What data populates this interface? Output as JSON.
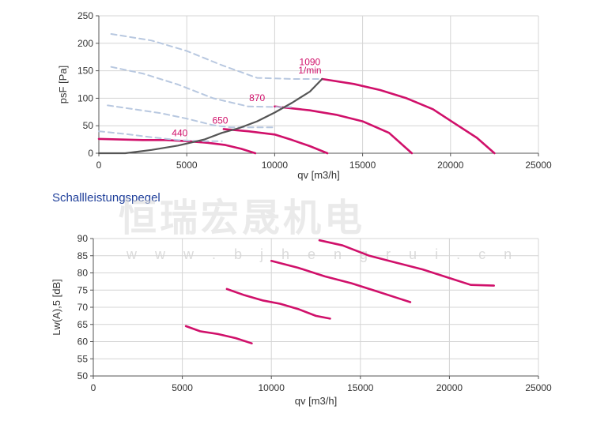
{
  "section_title": "Schallleistungspegel",
  "watermark": {
    "text": "恒瑞宏晟机电",
    "url": "w w w . b j h e n g r u i . c n"
  },
  "colors": {
    "curve": "#d0106a",
    "system": "#555555",
    "dashed": "#b8c8e0",
    "grid": "#d4d4d4"
  },
  "chart_data": [
    {
      "type": "line",
      "title": "",
      "xlabel": "qv [m3/h]",
      "ylabel": "psF [Pa]",
      "xlim": [
        0,
        25000
      ],
      "ylim": [
        0,
        250
      ],
      "xticks": [
        0,
        5000,
        10000,
        15000,
        20000,
        25000
      ],
      "yticks": [
        0,
        50,
        100,
        150,
        200,
        250
      ],
      "grid": true,
      "series": [
        {
          "name": "440",
          "style": "solid",
          "x": [
            0,
            1200,
            2500,
            3800,
            5000,
            6200,
            7200,
            8100,
            8900
          ],
          "y": [
            26,
            25,
            24,
            24,
            22,
            19,
            15,
            8,
            0
          ]
        },
        {
          "name": "650",
          "style": "solid",
          "x": [
            7100,
            8500,
            10000,
            11000,
            12000,
            13000
          ],
          "y": [
            44,
            40,
            34,
            24,
            13,
            0
          ]
        },
        {
          "name": "870",
          "style": "solid",
          "x": [
            10000,
            12000,
            13500,
            15000,
            16500,
            17800
          ],
          "y": [
            85,
            78,
            70,
            58,
            37,
            0
          ]
        },
        {
          "name": "1090 1/min",
          "style": "solid",
          "x": [
            12700,
            14500,
            16000,
            17500,
            19000,
            20200,
            21500,
            22500
          ],
          "y": [
            135,
            126,
            115,
            100,
            80,
            55,
            28,
            0
          ]
        },
        {
          "style": "dashed",
          "x": [
            0,
            1500,
            3000,
            4500,
            5800,
            7000
          ],
          "y": [
            40,
            35,
            29,
            24,
            22,
            22
          ]
        },
        {
          "style": "dashed",
          "x": [
            500,
            2000,
            3500,
            5000,
            6500,
            7500,
            8800,
            10000
          ],
          "y": [
            87,
            80,
            73,
            63,
            51,
            47,
            47,
            47
          ]
        },
        {
          "style": "dashed",
          "x": [
            700,
            2500,
            4500,
            6500,
            8500,
            10000,
            11000
          ],
          "y": [
            157,
            145,
            125,
            100,
            85,
            84,
            84
          ]
        },
        {
          "style": "dashed",
          "x": [
            700,
            3000,
            5000,
            7000,
            9000,
            11000,
            12700
          ],
          "y": [
            217,
            205,
            186,
            160,
            137,
            135,
            135
          ]
        },
        {
          "style": "system",
          "x": [
            0,
            1500,
            3000,
            4500,
            6000,
            7000,
            8000,
            9000,
            10000,
            11000,
            12000,
            12700
          ],
          "y": [
            0,
            0,
            6,
            14,
            25,
            37,
            46,
            58,
            74,
            92,
            112,
            135
          ]
        }
      ],
      "annotations": [
        "440",
        "650",
        "870",
        "1090",
        "1/min"
      ]
    },
    {
      "type": "line",
      "title": "",
      "xlabel": "qv [m3/h]",
      "ylabel": "Lw(A),5 [dB]",
      "xlim": [
        0,
        25000
      ],
      "ylim": [
        50,
        90
      ],
      "xticks": [
        0,
        5000,
        10000,
        15000,
        20000,
        25000
      ],
      "yticks": [
        50,
        55,
        60,
        65,
        70,
        75,
        80,
        85,
        90
      ],
      "grid": true,
      "series": [
        {
          "x": [
            5200,
            6000,
            7000,
            8000,
            8900
          ],
          "y": [
            64.5,
            63,
            62.2,
            61,
            59.5
          ]
        },
        {
          "x": [
            7500,
            8500,
            9500,
            10500,
            11500,
            12500,
            13300
          ],
          "y": [
            75.3,
            73.5,
            72,
            71,
            69.5,
            67.5,
            66.7
          ]
        },
        {
          "x": [
            10000,
            11500,
            13000,
            14500,
            16000,
            17800
          ],
          "y": [
            83.5,
            81.5,
            79,
            77,
            74.5,
            71.5
          ]
        },
        {
          "x": [
            12700,
            14000,
            15500,
            17000,
            18500,
            20000,
            21200,
            22500
          ],
          "y": [
            89.5,
            88,
            85,
            83,
            81,
            78.5,
            76.5,
            76.3
          ]
        }
      ]
    }
  ]
}
